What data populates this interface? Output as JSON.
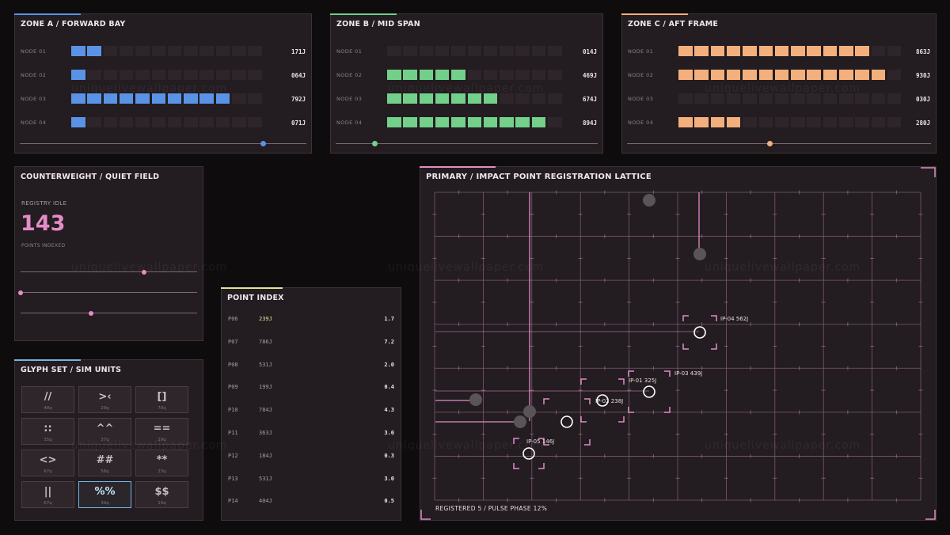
{
  "colors": {
    "blue": "#5a93e6",
    "green": "#72d08a",
    "orange": "#f4b07c",
    "pink": "#e58cc8",
    "lime": "#d7e89a",
    "sky": "#6fb6e6"
  },
  "zones": [
    {
      "title": "ZONE A / FORWARD BAY",
      "color": "blue",
      "rows": [
        {
          "label": "NODE 01",
          "filled": 2,
          "value": "171J"
        },
        {
          "label": "NODE 02",
          "filled": 1,
          "value": "064J"
        },
        {
          "label": "NODE 03",
          "filled": 10,
          "value": "792J"
        },
        {
          "label": "NODE 04",
          "filled": 1,
          "value": "071J"
        }
      ],
      "slider": 0.85
    },
    {
      "title": "ZONE B / MID SPAN",
      "color": "green",
      "rows": [
        {
          "label": "NODE 01",
          "filled": 0,
          "value": "014J"
        },
        {
          "label": "NODE 02",
          "filled": 5,
          "value": "469J"
        },
        {
          "label": "NODE 03",
          "filled": 7,
          "value": "674J"
        },
        {
          "label": "NODE 04",
          "filled": 10,
          "value": "894J"
        }
      ],
      "slider": 0.15
    },
    {
      "title": "ZONE C / AFT FRAME",
      "color": "orange",
      "rows": [
        {
          "label": "NODE 01",
          "filled": 12,
          "value": "863J"
        },
        {
          "label": "NODE 02",
          "filled": 13,
          "value": "930J"
        },
        {
          "label": "NODE 03",
          "filled": 0,
          "value": "030J"
        },
        {
          "label": "NODE 04",
          "filled": 4,
          "value": "280J"
        }
      ],
      "slider": 0.47
    }
  ],
  "counterweight": {
    "title": "COUNTERWEIGHT / QUIET FIELD",
    "status": "REGISTRY IDLE",
    "count": "143",
    "caption": "POINTS INDEXED",
    "sliders": [
      0.7,
      0.0,
      0.4
    ]
  },
  "glyphs": {
    "title": "GLYPH SET / SIM UNITS",
    "items": [
      {
        "glyph": "//",
        "unit": "48q"
      },
      {
        "glyph": ">‹",
        "unit": "29q"
      },
      {
        "glyph": "[]",
        "unit": "78q"
      },
      {
        "glyph": "::",
        "unit": "35q"
      },
      {
        "glyph": "^^",
        "unit": "37q"
      },
      {
        "glyph": "==",
        "unit": "29q"
      },
      {
        "glyph": "<>",
        "unit": "67q"
      },
      {
        "glyph": "##",
        "unit": "58q"
      },
      {
        "glyph": "**",
        "unit": "23q"
      },
      {
        "glyph": "||",
        "unit": "67q"
      },
      {
        "glyph": "%%",
        "unit": "39q"
      },
      {
        "glyph": "$$",
        "unit": "19q"
      }
    ],
    "selected": 10
  },
  "index": {
    "title": "POINT INDEX",
    "rows": [
      {
        "id": "P06",
        "energy": "239J",
        "value": "1.7",
        "highlight": true
      },
      {
        "id": "P07",
        "energy": "786J",
        "value": "7.2"
      },
      {
        "id": "P08",
        "energy": "531J",
        "value": "2.0"
      },
      {
        "id": "P09",
        "energy": "199J",
        "value": "0.4"
      },
      {
        "id": "P10",
        "energy": "784J",
        "value": "4.3"
      },
      {
        "id": "P11",
        "energy": "363J",
        "value": "3.0"
      },
      {
        "id": "P12",
        "energy": "184J",
        "value": "0.3"
      },
      {
        "id": "P13",
        "energy": "531J",
        "value": "3.0"
      },
      {
        "id": "P14",
        "energy": "404J",
        "value": "0.5"
      }
    ]
  },
  "lattice": {
    "title": "PRIMARY / IMPACT POINT REGISTRATION LATTICE",
    "footer": "REGISTERED 5 / PULSE PHASE 12%",
    "labels": {
      "ip04": "IP-04 562J",
      "ip03": "IP-03 439J",
      "ip01": "IP-01 325J",
      "ip02": "IP-02 238J",
      "ip05": "IP-05 146J"
    }
  },
  "watermark": "uniquelivewallpaper.com"
}
